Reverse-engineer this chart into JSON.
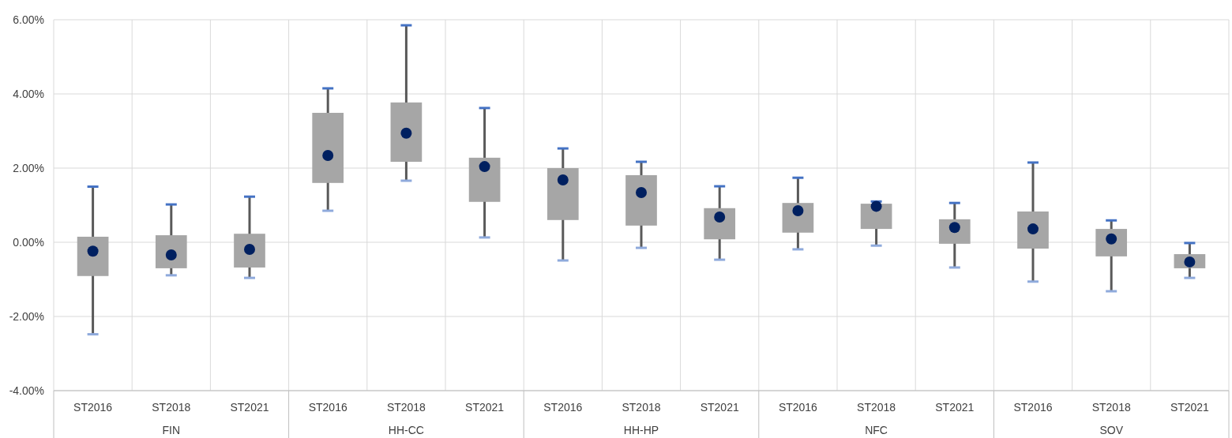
{
  "chart_data": {
    "type": "box",
    "categories": [
      "ST2016",
      "ST2018",
      "ST2021",
      "ST2016",
      "ST2018",
      "ST2021",
      "ST2016",
      "ST2018",
      "ST2021",
      "ST2016",
      "ST2018",
      "ST2021",
      "ST2016",
      "ST2018",
      "ST2021"
    ],
    "annotations": [
      "FIN",
      "HH-CC",
      "HH-HP",
      "NFC",
      "SOV"
    ],
    "ylim": [
      -4,
      6
    ],
    "yticks": [
      {
        "value": -4,
        "label": "-4.00%"
      },
      {
        "value": -2,
        "label": "-2.00%"
      },
      {
        "value": 0,
        "label": "0.00%"
      },
      {
        "value": 2,
        "label": "2.00%"
      },
      {
        "value": 4,
        "label": "4.00%"
      },
      {
        "value": 6,
        "label": "6.00%"
      }
    ],
    "grid": true,
    "series": [
      {
        "color": "#a6a6a6",
        "boxes": [
          {
            "low": -2.48,
            "q1": -0.91,
            "median": -0.24,
            "q3": 0.15,
            "high": 1.5
          },
          {
            "low": -0.89,
            "q1": -0.7,
            "median": -0.34,
            "q3": 0.19,
            "high": 1.02
          },
          {
            "low": -0.96,
            "q1": -0.68,
            "median": -0.19,
            "q3": 0.23,
            "high": 1.23
          },
          {
            "low": 0.85,
            "q1": 1.6,
            "median": 2.34,
            "q3": 3.49,
            "high": 4.15
          },
          {
            "low": 1.66,
            "q1": 2.17,
            "median": 2.94,
            "q3": 3.77,
            "high": 5.85
          },
          {
            "low": 0.13,
            "q1": 1.09,
            "median": 2.04,
            "q3": 2.28,
            "high": 3.62
          },
          {
            "low": -0.49,
            "q1": 0.6,
            "median": 1.68,
            "q3": 2.0,
            "high": 2.53
          },
          {
            "low": -0.15,
            "q1": 0.45,
            "median": 1.34,
            "q3": 1.81,
            "high": 2.17
          },
          {
            "low": -0.47,
            "q1": 0.08,
            "median": 0.68,
            "q3": 0.92,
            "high": 1.51
          },
          {
            "low": -0.19,
            "q1": 0.26,
            "median": 0.85,
            "q3": 1.06,
            "high": 1.74
          },
          {
            "low": -0.09,
            "q1": 0.36,
            "median": 0.97,
            "q3": 1.04,
            "high": 1.1
          },
          {
            "low": -0.68,
            "q1": -0.04,
            "median": 0.4,
            "q3": 0.62,
            "high": 1.06
          },
          {
            "low": -1.06,
            "q1": -0.17,
            "median": 0.36,
            "q3": 0.83,
            "high": 2.15
          },
          {
            "low": -1.32,
            "q1": -0.38,
            "median": 0.09,
            "q3": 0.36,
            "high": 0.59
          },
          {
            "low": -0.96,
            "q1": -0.7,
            "median": -0.53,
            "q3": -0.32,
            "high": -0.02
          }
        ]
      }
    ]
  }
}
